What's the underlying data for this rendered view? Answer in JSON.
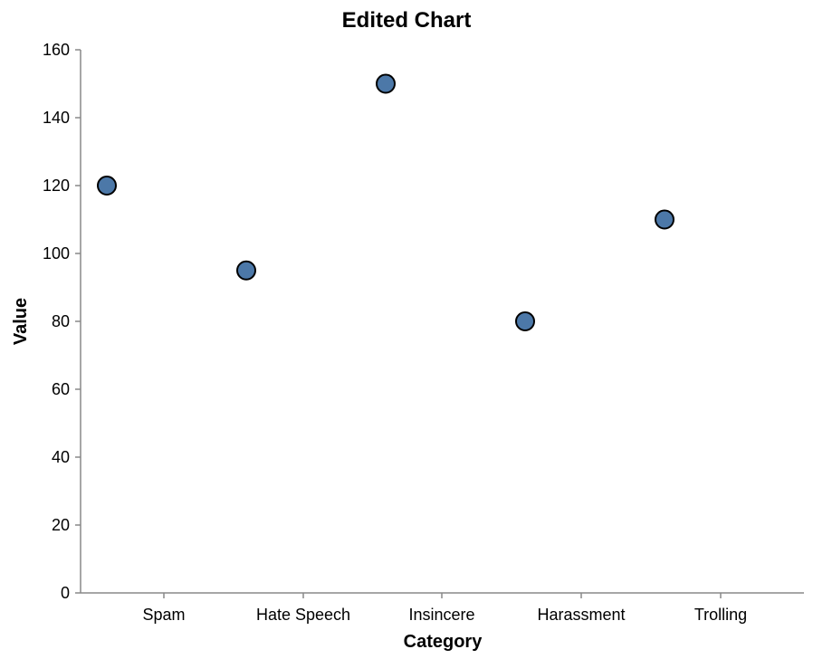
{
  "chart_data": {
    "type": "scatter",
    "title": "Edited Chart",
    "xlabel": "Category",
    "ylabel": "Value",
    "categories": [
      "Spam",
      "Hate Speech",
      "Insincere",
      "Harassment",
      "Trolling"
    ],
    "points": [
      {
        "category": "Spam",
        "value": 120
      },
      {
        "category": "Hate Speech",
        "value": 95
      },
      {
        "category": "Insincere",
        "value": 150
      },
      {
        "category": "Harassment",
        "value": 80
      },
      {
        "category": "Trolling",
        "value": 110
      }
    ],
    "ylim": [
      0,
      160
    ],
    "yticks": [
      0,
      20,
      40,
      60,
      80,
      100,
      120,
      140,
      160
    ],
    "grid": false,
    "point_color": "#4c78a8",
    "point_stroke": "#000000",
    "axis_color": "#888888"
  }
}
